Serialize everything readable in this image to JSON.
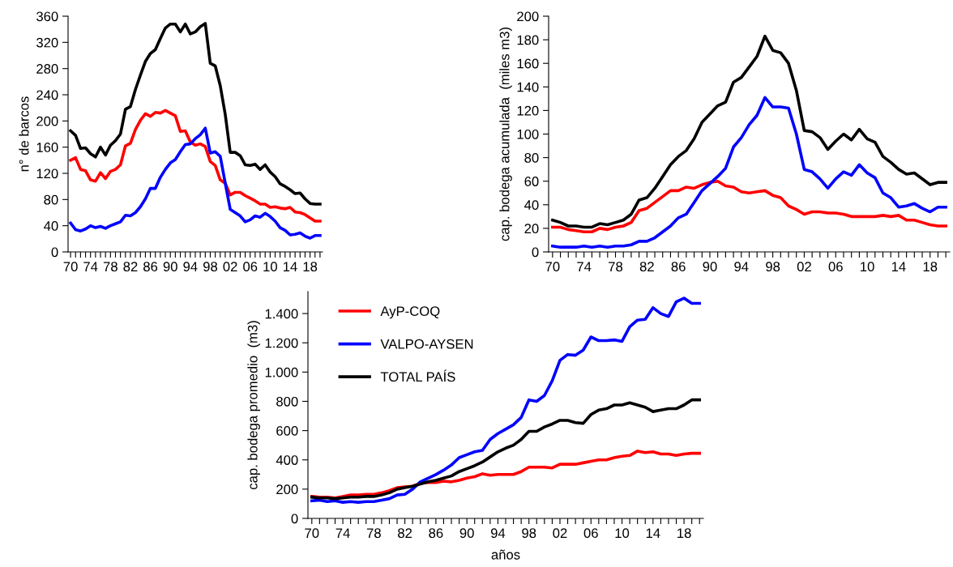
{
  "chart_data": [
    {
      "type": "line",
      "ylabel": "n° de barcos",
      "legend": false,
      "grid": false,
      "x": [
        1970,
        1971,
        1972,
        1973,
        1974,
        1975,
        1976,
        1977,
        1978,
        1979,
        1980,
        1981,
        1982,
        1983,
        1984,
        1985,
        1986,
        1987,
        1988,
        1989,
        1990,
        1991,
        1992,
        1993,
        1994,
        1995,
        1996,
        1997,
        1998,
        1999,
        2000,
        2001,
        2002,
        2003,
        2004,
        2005,
        2006,
        2007,
        2008,
        2009,
        2010,
        2011,
        2012,
        2013,
        2014,
        2015,
        2016,
        2017,
        2018,
        2019,
        2020
      ],
      "xlim": [
        1969.5,
        2020.5
      ],
      "xticks": [
        {
          "value": 1970,
          "label": "70"
        },
        {
          "value": 1971,
          "label": null
        },
        {
          "value": 1972,
          "label": null
        },
        {
          "value": 1973,
          "label": null
        },
        {
          "value": 1974,
          "label": "74"
        },
        {
          "value": 1975,
          "label": null
        },
        {
          "value": 1976,
          "label": null
        },
        {
          "value": 1977,
          "label": null
        },
        {
          "value": 1978,
          "label": "78"
        },
        {
          "value": 1979,
          "label": null
        },
        {
          "value": 1980,
          "label": null
        },
        {
          "value": 1981,
          "label": null
        },
        {
          "value": 1982,
          "label": "82"
        },
        {
          "value": 1983,
          "label": null
        },
        {
          "value": 1984,
          "label": null
        },
        {
          "value": 1985,
          "label": null
        },
        {
          "value": 1986,
          "label": "86"
        },
        {
          "value": 1987,
          "label": null
        },
        {
          "value": 1988,
          "label": null
        },
        {
          "value": 1989,
          "label": null
        },
        {
          "value": 1990,
          "label": "90"
        },
        {
          "value": 1991,
          "label": null
        },
        {
          "value": 1992,
          "label": null
        },
        {
          "value": 1993,
          "label": null
        },
        {
          "value": 1994,
          "label": "94"
        },
        {
          "value": 1995,
          "label": null
        },
        {
          "value": 1996,
          "label": null
        },
        {
          "value": 1997,
          "label": null
        },
        {
          "value": 1998,
          "label": "98"
        },
        {
          "value": 1999,
          "label": null
        },
        {
          "value": 2000,
          "label": null
        },
        {
          "value": 2001,
          "label": null
        },
        {
          "value": 2002,
          "label": "02"
        },
        {
          "value": 2003,
          "label": null
        },
        {
          "value": 2004,
          "label": null
        },
        {
          "value": 2005,
          "label": null
        },
        {
          "value": 2006,
          "label": "06"
        },
        {
          "value": 2007,
          "label": null
        },
        {
          "value": 2008,
          "label": null
        },
        {
          "value": 2009,
          "label": null
        },
        {
          "value": 2010,
          "label": "10"
        },
        {
          "value": 2011,
          "label": null
        },
        {
          "value": 2012,
          "label": null
        },
        {
          "value": 2013,
          "label": null
        },
        {
          "value": 2014,
          "label": "14"
        },
        {
          "value": 2015,
          "label": null
        },
        {
          "value": 2016,
          "label": null
        },
        {
          "value": 2017,
          "label": null
        },
        {
          "value": 2018,
          "label": "18"
        },
        {
          "value": 2019,
          "label": null
        },
        {
          "value": 2020,
          "label": null
        }
      ],
      "ylim": [
        0,
        360
      ],
      "yticks": [
        0,
        40,
        80,
        120,
        160,
        200,
        240,
        280,
        320,
        360
      ],
      "series": [
        {
          "color": "#ff0000",
          "values": [
            140,
            144,
            126,
            124,
            110,
            108,
            121,
            112,
            123,
            126,
            133,
            162,
            166,
            187,
            201,
            211,
            207,
            213,
            212,
            216,
            212,
            208,
            184,
            185,
            168,
            163,
            165,
            161,
            138,
            132,
            110,
            105,
            87,
            91,
            91,
            86,
            82,
            78,
            73,
            73,
            68,
            69,
            67,
            66,
            68,
            61,
            60,
            57,
            52,
            47,
            47
          ]
        },
        {
          "color": "#0000ff",
          "values": [
            44,
            34,
            32,
            35,
            40,
            37,
            39,
            36,
            40,
            43,
            46,
            56,
            55,
            60,
            69,
            81,
            97,
            97,
            114,
            126,
            136,
            141,
            153,
            164,
            165,
            173,
            179,
            189,
            151,
            153,
            146,
            105,
            65,
            60,
            55,
            46,
            49,
            55,
            53,
            59,
            54,
            47,
            37,
            33,
            26,
            27,
            29,
            24,
            21,
            25,
            25
          ]
        },
        {
          "color": "#000000",
          "values": [
            185,
            178,
            158,
            159,
            150,
            145,
            160,
            148,
            163,
            170,
            180,
            218,
            222,
            248,
            270,
            291,
            303,
            309,
            326,
            342,
            348,
            348,
            336,
            348,
            333,
            336,
            344,
            349,
            288,
            284,
            254,
            210,
            152,
            152,
            147,
            133,
            132,
            134,
            126,
            133,
            122,
            115,
            104,
            100,
            95,
            89,
            90,
            81,
            74,
            73,
            73
          ]
        }
      ]
    },
    {
      "type": "line",
      "ylabel": "cap. bodega acumulada  (miles m3)",
      "legend": false,
      "grid": false,
      "x": [
        1970,
        1971,
        1972,
        1973,
        1974,
        1975,
        1976,
        1977,
        1978,
        1979,
        1980,
        1981,
        1982,
        1983,
        1984,
        1985,
        1986,
        1987,
        1988,
        1989,
        1990,
        1991,
        1992,
        1993,
        1994,
        1995,
        1996,
        1997,
        1998,
        1999,
        2000,
        2001,
        2002,
        2003,
        2004,
        2005,
        2006,
        2007,
        2008,
        2009,
        2010,
        2011,
        2012,
        2013,
        2014,
        2015,
        2016,
        2017,
        2018,
        2019,
        2020
      ],
      "xlim": [
        1969.5,
        2020.5
      ],
      "xticks": [
        {
          "value": 1970,
          "label": "70"
        },
        {
          "value": 1971,
          "label": null
        },
        {
          "value": 1972,
          "label": null
        },
        {
          "value": 1973,
          "label": null
        },
        {
          "value": 1974,
          "label": "74"
        },
        {
          "value": 1975,
          "label": null
        },
        {
          "value": 1976,
          "label": null
        },
        {
          "value": 1977,
          "label": null
        },
        {
          "value": 1978,
          "label": "78"
        },
        {
          "value": 1979,
          "label": null
        },
        {
          "value": 1980,
          "label": null
        },
        {
          "value": 1981,
          "label": null
        },
        {
          "value": 1982,
          "label": "82"
        },
        {
          "value": 1983,
          "label": null
        },
        {
          "value": 1984,
          "label": null
        },
        {
          "value": 1985,
          "label": null
        },
        {
          "value": 1986,
          "label": "86"
        },
        {
          "value": 1987,
          "label": null
        },
        {
          "value": 1988,
          "label": null
        },
        {
          "value": 1989,
          "label": null
        },
        {
          "value": 1990,
          "label": "90"
        },
        {
          "value": 1991,
          "label": null
        },
        {
          "value": 1992,
          "label": null
        },
        {
          "value": 1993,
          "label": null
        },
        {
          "value": 1994,
          "label": "94"
        },
        {
          "value": 1995,
          "label": null
        },
        {
          "value": 1996,
          "label": null
        },
        {
          "value": 1997,
          "label": null
        },
        {
          "value": 1998,
          "label": "98"
        },
        {
          "value": 1999,
          "label": null
        },
        {
          "value": 2000,
          "label": null
        },
        {
          "value": 2001,
          "label": null
        },
        {
          "value": 2002,
          "label": "02"
        },
        {
          "value": 2003,
          "label": null
        },
        {
          "value": 2004,
          "label": null
        },
        {
          "value": 2005,
          "label": null
        },
        {
          "value": 2006,
          "label": "06"
        },
        {
          "value": 2007,
          "label": null
        },
        {
          "value": 2008,
          "label": null
        },
        {
          "value": 2009,
          "label": null
        },
        {
          "value": 2010,
          "label": "10"
        },
        {
          "value": 2011,
          "label": null
        },
        {
          "value": 2012,
          "label": null
        },
        {
          "value": 2013,
          "label": null
        },
        {
          "value": 2014,
          "label": "14"
        },
        {
          "value": 2015,
          "label": null
        },
        {
          "value": 2016,
          "label": null
        },
        {
          "value": 2017,
          "label": null
        },
        {
          "value": 2018,
          "label": "18"
        },
        {
          "value": 2019,
          "label": null
        },
        {
          "value": 2020,
          "label": null
        }
      ],
      "ylim": [
        0,
        200
      ],
      "yticks": [
        0,
        20,
        40,
        60,
        80,
        100,
        120,
        140,
        160,
        180,
        200
      ],
      "series": [
        {
          "color": "#ff0000",
          "values": [
            21,
            21,
            19,
            18,
            17,
            17,
            20,
            19,
            21,
            22,
            25,
            35,
            37,
            42,
            47,
            52,
            52,
            55,
            54,
            57,
            59,
            60,
            56,
            55,
            51,
            50,
            51,
            52,
            48,
            46,
            39,
            36,
            32,
            34,
            34,
            33,
            33,
            32,
            30,
            30,
            30,
            30,
            31,
            30,
            31,
            27,
            27,
            25,
            23,
            22,
            22
          ]
        },
        {
          "color": "#0000ff",
          "values": [
            5,
            4,
            4,
            4,
            5,
            4,
            5,
            4,
            5,
            5,
            6,
            9,
            9,
            12,
            17,
            22,
            29,
            32,
            42,
            52,
            58,
            64,
            71,
            89,
            97,
            108,
            116,
            131,
            123,
            123,
            122,
            100,
            70,
            68,
            62,
            54,
            62,
            68,
            65,
            74,
            67,
            63,
            50,
            46,
            38,
            39,
            41,
            37,
            34,
            38,
            38
          ]
        },
        {
          "color": "#000000",
          "values": [
            27,
            25,
            22,
            22,
            21,
            21,
            24,
            23,
            25,
            27,
            32,
            44,
            46,
            54,
            64,
            74,
            81,
            86,
            96,
            110,
            117,
            124,
            127,
            144,
            148,
            157,
            166,
            183,
            171,
            169,
            160,
            137,
            103,
            102,
            97,
            87,
            94,
            100,
            95,
            104,
            96,
            93,
            81,
            76,
            70,
            66,
            67,
            62,
            57,
            59,
            59
          ]
        }
      ]
    },
    {
      "type": "line",
      "ylabel": "cap. bodega promedio  (m3)",
      "xlabel": "años",
      "legend": "top left",
      "grid": false,
      "x": [
        1970,
        1971,
        1972,
        1973,
        1974,
        1975,
        1976,
        1977,
        1978,
        1979,
        1980,
        1981,
        1982,
        1983,
        1984,
        1985,
        1986,
        1987,
        1988,
        1989,
        1990,
        1991,
        1992,
        1993,
        1994,
        1995,
        1996,
        1997,
        1998,
        1999,
        2000,
        2001,
        2002,
        2003,
        2004,
        2005,
        2006,
        2007,
        2008,
        2009,
        2010,
        2011,
        2012,
        2013,
        2014,
        2015,
        2016,
        2017,
        2018,
        2019,
        2020
      ],
      "xlim": [
        1969.5,
        2020.5
      ],
      "xticks": [
        {
          "value": 1970,
          "label": "70"
        },
        {
          "value": 1971,
          "label": null
        },
        {
          "value": 1972,
          "label": null
        },
        {
          "value": 1973,
          "label": null
        },
        {
          "value": 1974,
          "label": "74"
        },
        {
          "value": 1975,
          "label": null
        },
        {
          "value": 1976,
          "label": null
        },
        {
          "value": 1977,
          "label": null
        },
        {
          "value": 1978,
          "label": "78"
        },
        {
          "value": 1979,
          "label": null
        },
        {
          "value": 1980,
          "label": null
        },
        {
          "value": 1981,
          "label": null
        },
        {
          "value": 1982,
          "label": "82"
        },
        {
          "value": 1983,
          "label": null
        },
        {
          "value": 1984,
          "label": null
        },
        {
          "value": 1985,
          "label": null
        },
        {
          "value": 1986,
          "label": "86"
        },
        {
          "value": 1987,
          "label": null
        },
        {
          "value": 1988,
          "label": null
        },
        {
          "value": 1989,
          "label": null
        },
        {
          "value": 1990,
          "label": "90"
        },
        {
          "value": 1991,
          "label": null
        },
        {
          "value": 1992,
          "label": null
        },
        {
          "value": 1993,
          "label": null
        },
        {
          "value": 1994,
          "label": "94"
        },
        {
          "value": 1995,
          "label": null
        },
        {
          "value": 1996,
          "label": null
        },
        {
          "value": 1997,
          "label": null
        },
        {
          "value": 1998,
          "label": "98"
        },
        {
          "value": 1999,
          "label": null
        },
        {
          "value": 2000,
          "label": null
        },
        {
          "value": 2001,
          "label": null
        },
        {
          "value": 2002,
          "label": "02"
        },
        {
          "value": 2003,
          "label": null
        },
        {
          "value": 2004,
          "label": null
        },
        {
          "value": 2005,
          "label": null
        },
        {
          "value": 2006,
          "label": "06"
        },
        {
          "value": 2007,
          "label": null
        },
        {
          "value": 2008,
          "label": null
        },
        {
          "value": 2009,
          "label": null
        },
        {
          "value": 2010,
          "label": "10"
        },
        {
          "value": 2011,
          "label": null
        },
        {
          "value": 2012,
          "label": null
        },
        {
          "value": 2013,
          "label": null
        },
        {
          "value": 2014,
          "label": "14"
        },
        {
          "value": 2015,
          "label": null
        },
        {
          "value": 2016,
          "label": null
        },
        {
          "value": 2017,
          "label": null
        },
        {
          "value": 2018,
          "label": "18"
        },
        {
          "value": 2019,
          "label": null
        },
        {
          "value": 2020,
          "label": null
        }
      ],
      "ylim": [
        0,
        1550
      ],
      "yticks": [
        0,
        200,
        400,
        600,
        800,
        {
          "value": 1000,
          "label": "1.000"
        },
        {
          "value": 1200,
          "label": "1.200"
        },
        {
          "value": 1400,
          "label": "1.400"
        }
      ],
      "series": [
        {
          "name": "AyP-COQ",
          "color": "#ff0000",
          "values": [
            150,
            145,
            145,
            140,
            150,
            160,
            160,
            165,
            165,
            175,
            190,
            210,
            215,
            220,
            240,
            245,
            245,
            255,
            250,
            260,
            275,
            285,
            305,
            295,
            300,
            300,
            300,
            320,
            350,
            350,
            350,
            345,
            370,
            370,
            370,
            380,
            390,
            400,
            400,
            415,
            425,
            430,
            460,
            450,
            455,
            440,
            440,
            430,
            440,
            445,
            445
          ]
        },
        {
          "name": "VALPO-AYSEN",
          "color": "#0000ff",
          "values": [
            120,
            125,
            115,
            120,
            110,
            115,
            110,
            115,
            115,
            125,
            135,
            160,
            165,
            200,
            250,
            275,
            300,
            330,
            365,
            415,
            435,
            455,
            465,
            540,
            580,
            610,
            640,
            690,
            810,
            800,
            840,
            940,
            1080,
            1120,
            1115,
            1150,
            1240,
            1215,
            1215,
            1220,
            1210,
            1310,
            1355,
            1360,
            1440,
            1400,
            1380,
            1480,
            1505,
            1470,
            1470
          ]
        },
        {
          "name": "TOTAL PAÍS",
          "color": "#000000",
          "values": [
            145,
            140,
            140,
            135,
            140,
            145,
            145,
            150,
            150,
            160,
            175,
            200,
            210,
            220,
            235,
            250,
            260,
            275,
            290,
            320,
            340,
            360,
            385,
            420,
            455,
            480,
            500,
            540,
            595,
            595,
            625,
            645,
            670,
            670,
            655,
            650,
            710,
            740,
            750,
            775,
            775,
            790,
            775,
            760,
            730,
            740,
            750,
            750,
            775,
            810,
            810
          ]
        }
      ]
    }
  ]
}
